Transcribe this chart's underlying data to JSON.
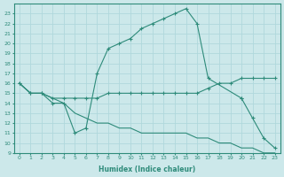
{
  "xlabel": "Humidex (Indice chaleur)",
  "ylabel": "",
  "background_color": "#cce8ea",
  "grid_color": "#b0d8dc",
  "line_color": "#2e8b7a",
  "xlim": [
    -0.5,
    23.5
  ],
  "ylim": [
    9,
    24
  ],
  "xticks": [
    0,
    1,
    2,
    3,
    4,
    5,
    6,
    7,
    8,
    9,
    10,
    11,
    12,
    13,
    14,
    15,
    16,
    17,
    18,
    19,
    20,
    21,
    22,
    23
  ],
  "yticks": [
    9,
    10,
    11,
    12,
    13,
    14,
    15,
    16,
    17,
    18,
    19,
    20,
    21,
    22,
    23
  ],
  "line1_x": [
    0,
    1,
    2,
    3,
    4,
    5,
    6,
    7,
    8,
    9,
    10,
    11,
    12,
    13,
    14,
    15,
    16,
    17,
    20
  ],
  "line1_y": [
    16,
    15,
    15,
    14,
    14,
    11,
    11.5,
    17,
    19.5,
    20,
    20.5,
    21.5,
    22,
    22.5,
    23,
    23.5,
    22,
    16.5,
    14.5
  ],
  "line2_x": [
    0,
    1,
    2,
    3,
    4,
    5,
    6,
    7,
    8,
    9,
    10,
    11,
    12,
    13,
    14,
    15,
    16,
    17,
    18,
    19,
    20,
    21,
    22,
    23
  ],
  "line2_y": [
    16,
    15,
    15,
    14.5,
    14.5,
    14.5,
    14.5,
    14.5,
    15,
    15,
    15,
    15,
    15,
    15,
    15,
    15,
    15,
    15.5,
    16,
    16,
    16.5,
    16.5,
    16.5,
    16.5
  ],
  "line3_x": [
    0,
    1,
    2,
    3,
    4,
    5,
    6,
    7,
    8,
    9,
    10,
    11,
    12,
    13,
    14,
    15,
    16,
    17,
    18,
    19,
    20,
    21,
    22,
    23
  ],
  "line3_y": [
    16,
    15,
    15,
    14.5,
    14,
    13,
    12.5,
    12,
    12,
    11.5,
    11.5,
    11,
    11,
    11,
    11,
    11,
    10.5,
    10.5,
    10,
    10,
    9.5,
    9.5,
    9,
    9
  ],
  "line4_x": [
    20,
    21,
    22,
    23
  ],
  "line4_y": [
    14.5,
    12.5,
    10.5,
    9.5
  ]
}
